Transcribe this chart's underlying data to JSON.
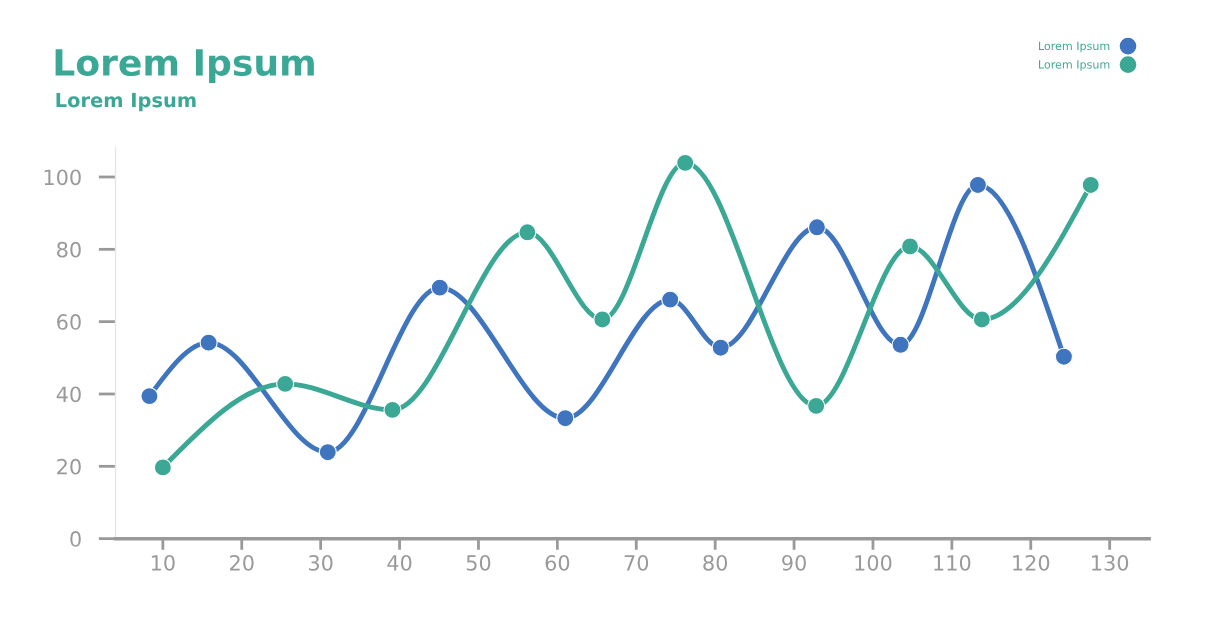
{
  "chart_data": {
    "type": "line",
    "title": "Lorem Ipsum",
    "subtitle": "Lorem Ipsum",
    "series": [
      {
        "name": "Lorem Ipsum",
        "color": "#3f74bf",
        "x": [
          8.3,
          15.8,
          30.9,
          45.1,
          61.0,
          74.3,
          80.7,
          92.9,
          103.5,
          113.3,
          124.2
        ],
        "values": [
          39.4,
          54.2,
          23.9,
          69.4,
          33.3,
          66.1,
          52.8,
          86.1,
          53.6,
          97.8,
          50.3
        ]
      },
      {
        "name": "Lorem Ipsum",
        "color": "#3aa894",
        "x": [
          10,
          25.5,
          39.1,
          56.2,
          65.7,
          76.2,
          92.8,
          104.7,
          113.8,
          127.6
        ],
        "values": [
          19.7,
          42.8,
          35.6,
          84.7,
          60.6,
          103.9,
          36.7,
          80.8,
          60.6,
          97.8
        ]
      }
    ],
    "xlim": [
      4,
      135
    ],
    "ylim": [
      0,
      108
    ],
    "xticks": [
      10,
      20,
      30,
      40,
      50,
      60,
      70,
      80,
      90,
      100,
      110,
      120,
      130
    ],
    "yticks": [
      0,
      20,
      40,
      60,
      80,
      100
    ],
    "marker": "circle",
    "legend": "top right",
    "grid": false
  }
}
